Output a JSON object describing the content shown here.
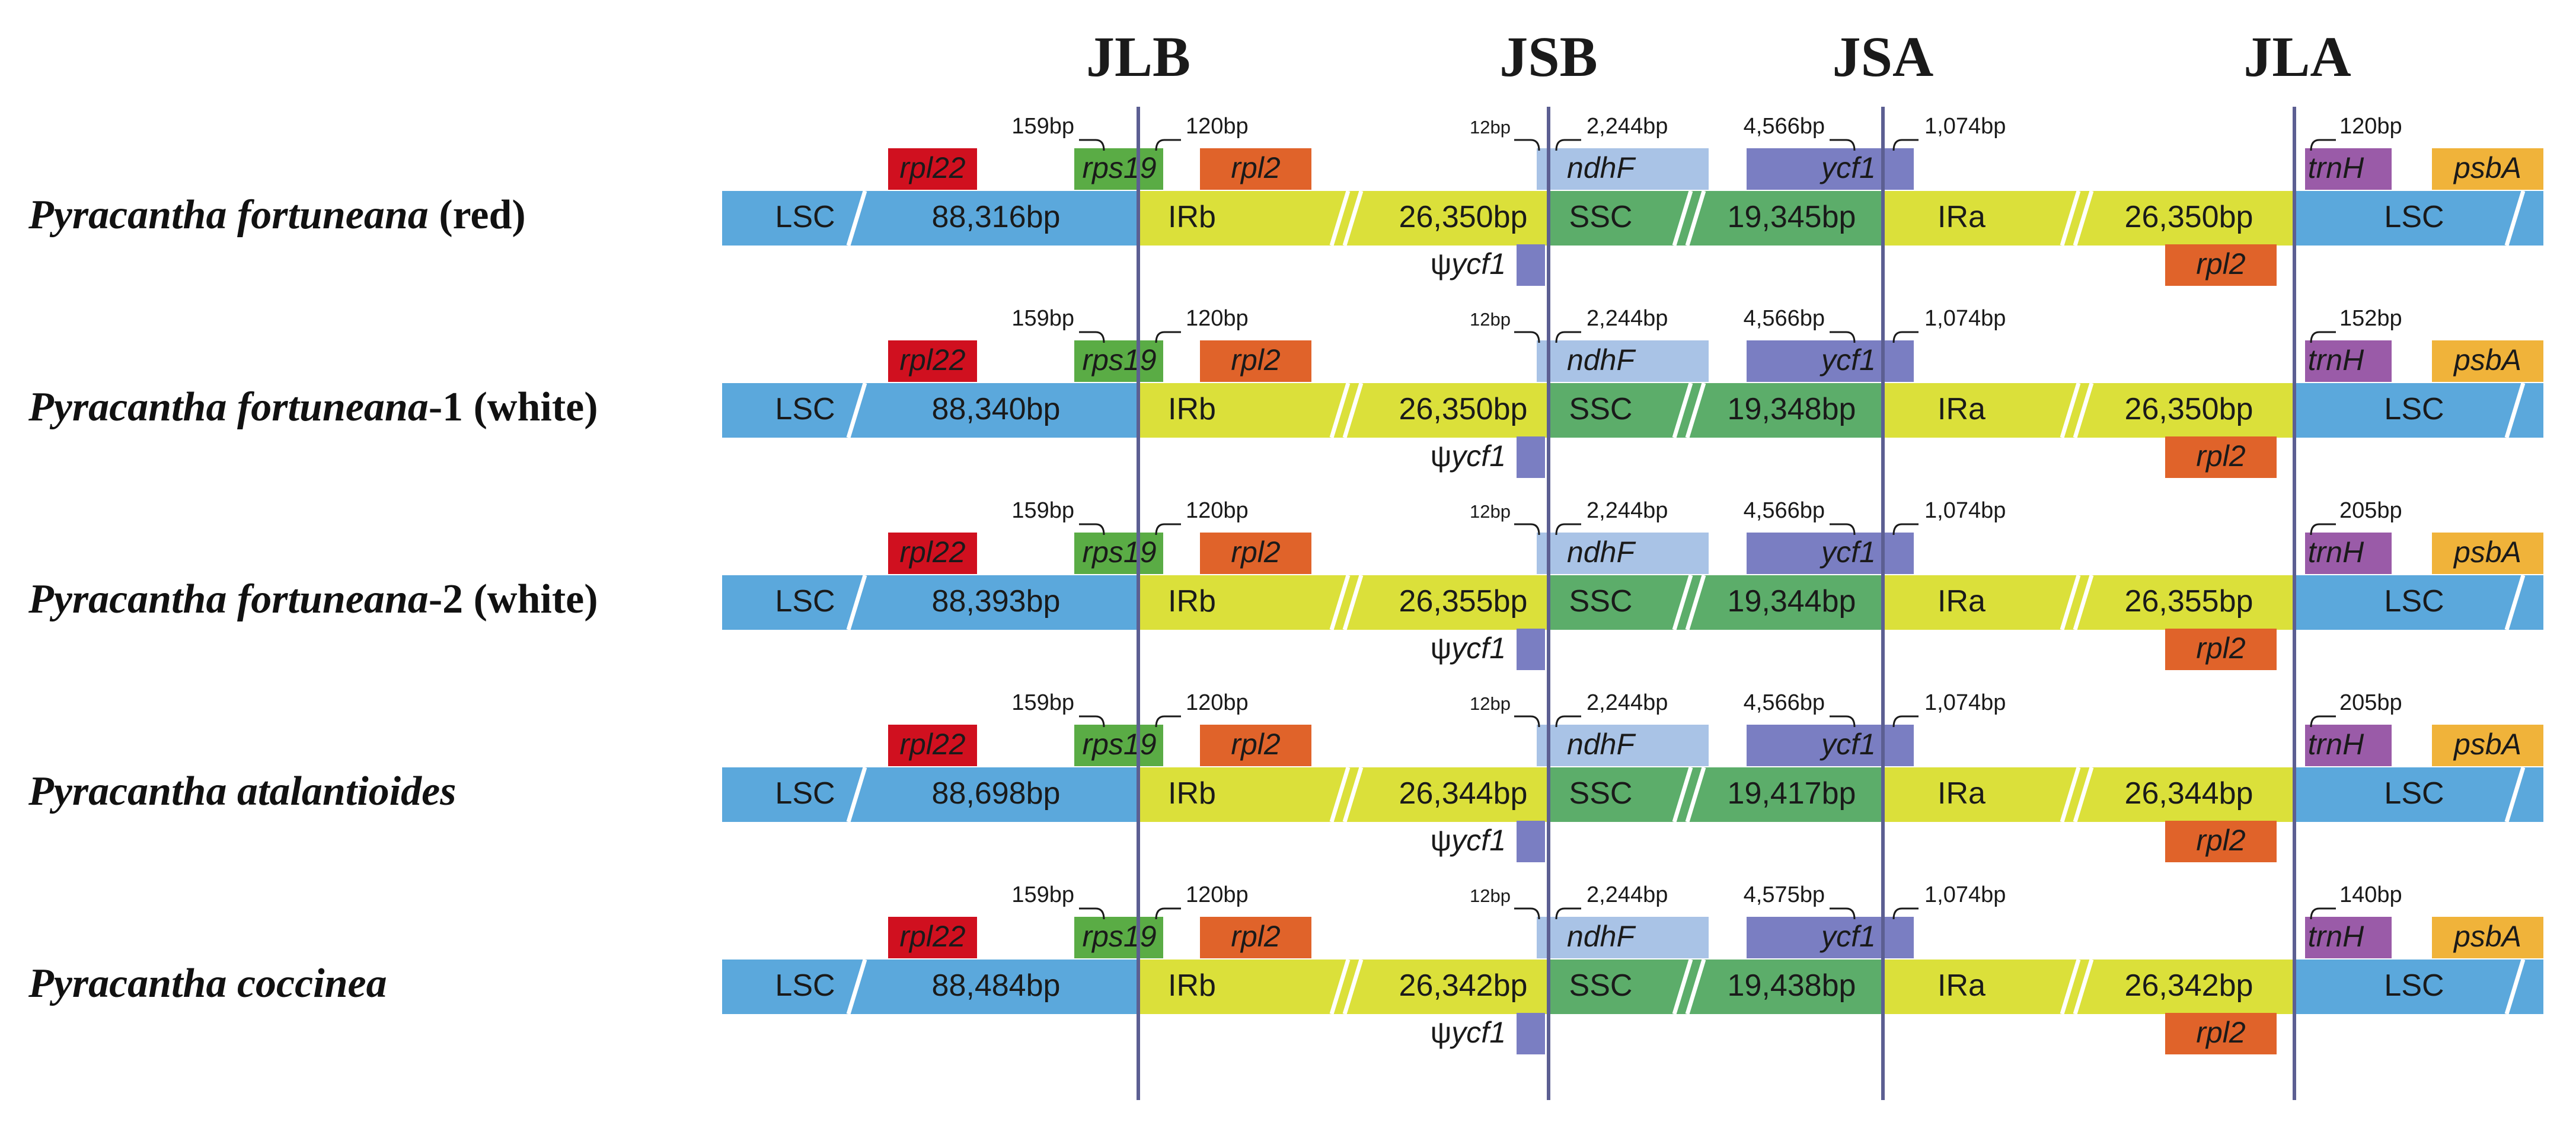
{
  "junctions": [
    "JLB",
    "JSB",
    "JSA",
    "JLA"
  ],
  "colors": {
    "lsc": "#5ba8dc",
    "ir": "#dbe03a",
    "ssc": "#5cad6a",
    "rpl22": "#d0101f",
    "rps19": "#5aac45",
    "rpl2": "#e0632a",
    "ndhF": "#a9c3e6",
    "ycf1": "#7a7ec2",
    "trnH": "#9a5ba8",
    "psbA": "#f0b33a",
    "junction_line": "#5c5f92"
  },
  "labels": {
    "lsc": "LSC",
    "irb": "IRb",
    "ssc": "SSC",
    "ira": "IRa",
    "psi_ycf1_prefix": "ψ",
    "psi_ycf1_gene": "ycf1"
  },
  "genes": {
    "rpl22": "rpl22",
    "rps19": "rps19",
    "rpl2": "rpl2",
    "ndhF": "ndhF",
    "ycf1": "ycf1",
    "trnH": "trnH",
    "psbA": "psbA"
  },
  "rows": [
    {
      "species_italic": "Pyracantha fortuneana",
      "species_suffix": " (red)",
      "lsc_len": "88,316bp",
      "irb_len": "26,350bp",
      "ssc_len": "19,345bp",
      "ira_len": "26,350bp",
      "rps19_over": "159bp",
      "rpl2_gap": "120bp",
      "ycf1_in_ssc": "12bp",
      "ndhF_len": "2,244bp",
      "ycf1_in_ssc2": "4,566bp",
      "ycf1_in_ira": "1,074bp",
      "trnH_gap": "120bp"
    },
    {
      "species_italic": "Pyracantha fortuneana",
      "species_suffix": "-1 (white)",
      "lsc_len": "88,340bp",
      "irb_len": "26,350bp",
      "ssc_len": "19,348bp",
      "ira_len": "26,350bp",
      "rps19_over": "159bp",
      "rpl2_gap": "120bp",
      "ycf1_in_ssc": "12bp",
      "ndhF_len": "2,244bp",
      "ycf1_in_ssc2": "4,566bp",
      "ycf1_in_ira": "1,074bp",
      "trnH_gap": "152bp"
    },
    {
      "species_italic": "Pyracantha fortuneana",
      "species_suffix": "-2 (white)",
      "lsc_len": "88,393bp",
      "irb_len": "26,355bp",
      "ssc_len": "19,344bp",
      "ira_len": "26,355bp",
      "rps19_over": "159bp",
      "rpl2_gap": "120bp",
      "ycf1_in_ssc": "12bp",
      "ndhF_len": "2,244bp",
      "ycf1_in_ssc2": "4,566bp",
      "ycf1_in_ira": "1,074bp",
      "trnH_gap": "205bp"
    },
    {
      "species_italic": "Pyracantha atalantioides",
      "species_suffix": "",
      "lsc_len": "88,698bp",
      "irb_len": "26,344bp",
      "ssc_len": "19,417bp",
      "ira_len": "26,344bp",
      "rps19_over": "159bp",
      "rpl2_gap": "120bp",
      "ycf1_in_ssc": "12bp",
      "ndhF_len": "2,244bp",
      "ycf1_in_ssc2": "4,566bp",
      "ycf1_in_ira": "1,074bp",
      "trnH_gap": "205bp"
    },
    {
      "species_italic": "Pyracantha coccinea",
      "species_suffix": "",
      "lsc_len": "88,484bp",
      "irb_len": "26,342bp",
      "ssc_len": "19,438bp",
      "ira_len": "26,342bp",
      "rps19_over": "159bp",
      "rpl2_gap": "120bp",
      "ycf1_in_ssc": "12bp",
      "ndhF_len": "2,244bp",
      "ycf1_in_ssc2": "4,575bp",
      "ycf1_in_ira": "1,074bp",
      "trnH_gap": "140bp"
    }
  ]
}
